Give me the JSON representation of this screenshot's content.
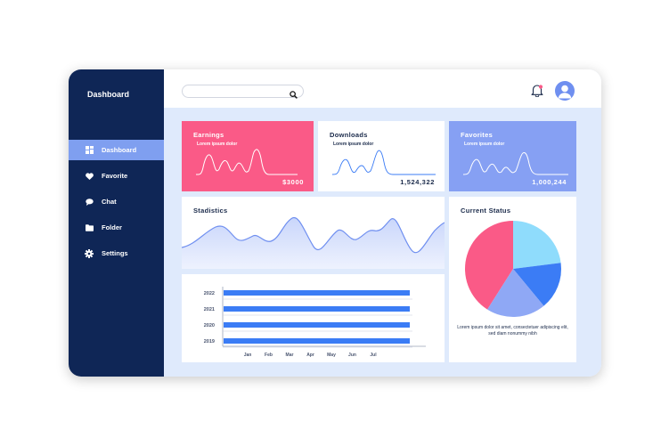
{
  "sidebar": {
    "title": "Dashboard",
    "items": [
      {
        "label": "Dashboard",
        "icon": "grid-icon"
      },
      {
        "label": "Favorite",
        "icon": "heart-icon"
      },
      {
        "label": "Chat",
        "icon": "chat-bubble-icon"
      },
      {
        "label": "Folder",
        "icon": "folder-icon"
      },
      {
        "label": "Settings",
        "icon": "gear-icon"
      }
    ]
  },
  "header": {
    "search_placeholder": "",
    "icons": [
      "search-icon",
      "bell-icon",
      "user-avatar-icon"
    ]
  },
  "cards": {
    "earnings": {
      "title": "Earnings",
      "subtitle": "Lorem ipsum dolor",
      "value": "$3000"
    },
    "downloads": {
      "title": "Downloads",
      "subtitle": "Lorem ipsum dolor",
      "value": "1,524,322"
    },
    "favorites": {
      "title": "Favorites",
      "subtitle": "Lorem ipsum dolor",
      "value": "1,000,244"
    }
  },
  "statistics": {
    "title": "Stadistics"
  },
  "current_status": {
    "title": "Current Status",
    "description": "Lorem ipsum dolor sit amet, consectetuer adipiscing elit, sed diam nonummy nibh"
  },
  "colors": {
    "sidebar": "#0f2656",
    "accent_blue": "#3b7cf5",
    "pink": "#fa5a87",
    "periwinkle": "#86a0f3",
    "light_blue": "#8fdcfc",
    "background": "#dfeafc"
  },
  "chart_data": [
    {
      "type": "bar",
      "orientation": "horizontal",
      "categories": [
        "2022",
        "2021",
        "2020",
        "2019"
      ],
      "x_tick_labels": [
        "Jan",
        "Feb",
        "Mar",
        "Apr",
        "May",
        "Jun",
        "Jul"
      ],
      "values": [
        9,
        9,
        9,
        9
      ],
      "xlim": [
        0,
        9
      ]
    },
    {
      "type": "pie",
      "slices": [
        {
          "value": 41,
          "color": "#fa5a87"
        },
        {
          "value": 23,
          "color": "#8fdcfc"
        },
        {
          "value": 16,
          "color": "#3b7cf5"
        },
        {
          "value": 20,
          "color": "#8fa8f5"
        }
      ]
    }
  ]
}
